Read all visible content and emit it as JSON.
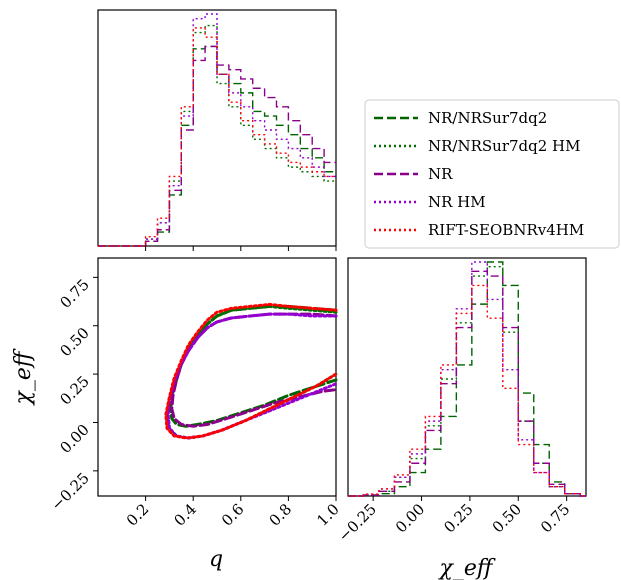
{
  "chart_data": [
    {
      "type": "histogram",
      "panel": "q-marginal",
      "bin_edges": [
        0.0,
        0.05,
        0.1,
        0.15,
        0.2,
        0.25,
        0.3,
        0.35,
        0.4,
        0.45,
        0.5,
        0.55,
        0.6,
        0.65,
        0.7,
        0.75,
        0.8,
        0.85,
        0.9,
        0.95,
        1.0
      ],
      "xlim": [
        0.0,
        1.0
      ],
      "series": [
        {
          "name": "NR/NRSur7dq2",
          "color": "#006400",
          "style": "dashed",
          "values": [
            0,
            0,
            0,
            0,
            0.02,
            0.06,
            0.22,
            0.52,
            0.85,
            0.86,
            0.74,
            0.7,
            0.66,
            0.58,
            0.56,
            0.52,
            0.48,
            0.42,
            0.38,
            0.32
          ]
        },
        {
          "name": "NR/NRSur7dq2 HM",
          "color": "#007000",
          "style": "dotted",
          "values": [
            0,
            0,
            0,
            0,
            0.03,
            0.1,
            0.28,
            0.58,
            0.92,
            0.95,
            0.7,
            0.6,
            0.52,
            0.46,
            0.42,
            0.38,
            0.34,
            0.32,
            0.3,
            0.28
          ]
        },
        {
          "name": "NR",
          "color": "#8B008B",
          "style": "dashed",
          "values": [
            0,
            0,
            0,
            0,
            0.02,
            0.07,
            0.24,
            0.5,
            0.8,
            0.86,
            0.78,
            0.76,
            0.72,
            0.68,
            0.64,
            0.6,
            0.54,
            0.48,
            0.42,
            0.36
          ]
        },
        {
          "name": "NR HM",
          "color": "#9400D3",
          "style": "dotted",
          "values": [
            0,
            0,
            0,
            0,
            0.03,
            0.1,
            0.26,
            0.56,
            0.98,
            1.0,
            0.74,
            0.66,
            0.6,
            0.54,
            0.5,
            0.46,
            0.42,
            0.38,
            0.34,
            0.3
          ]
        },
        {
          "name": "RIFT-SEOBNRv4HM",
          "color": "#ff0000",
          "style": "dotted",
          "values": [
            0,
            0,
            0,
            0,
            0.04,
            0.12,
            0.3,
            0.6,
            0.94,
            0.9,
            0.74,
            0.62,
            0.54,
            0.48,
            0.44,
            0.4,
            0.36,
            0.34,
            0.32,
            0.3
          ]
        }
      ]
    },
    {
      "type": "contour",
      "panel": "q-chi_eff",
      "xlabel": "q",
      "ylabel": "χ_eff",
      "xlim": [
        0.0,
        1.0
      ],
      "ylim": [
        -0.38,
        0.85
      ],
      "xticks": [
        "0.2",
        "0.4",
        "0.6",
        "0.8",
        "1.0"
      ],
      "yticks": [
        "−0.25",
        "0.00",
        "0.25",
        "0.50",
        "0.75"
      ],
      "series": [
        {
          "name": "NR/NRSur7dq2",
          "color": "#006400",
          "style": "dashed",
          "x": [
            1.0,
            0.9,
            0.8,
            0.72,
            0.64,
            0.56,
            0.5,
            0.46,
            0.42,
            0.38,
            0.35,
            0.33,
            0.31,
            0.305,
            0.31,
            0.33,
            0.37,
            0.42,
            0.5,
            0.6,
            0.7,
            0.8,
            0.9,
            1.0
          ],
          "y": [
            0.58,
            0.59,
            0.6,
            0.6,
            0.59,
            0.58,
            0.55,
            0.51,
            0.45,
            0.38,
            0.3,
            0.22,
            0.14,
            0.07,
            0.02,
            -0.01,
            -0.02,
            -0.01,
            0.01,
            0.05,
            0.09,
            0.14,
            0.18,
            0.22
          ]
        },
        {
          "name": "NR/NRSur7dq2 HM",
          "color": "#007000",
          "style": "dotted",
          "x": [
            1.0,
            0.9,
            0.8,
            0.72,
            0.64,
            0.56,
            0.5,
            0.46,
            0.42,
            0.38,
            0.35,
            0.32,
            0.3,
            0.29,
            0.3,
            0.33,
            0.38,
            0.44,
            0.52,
            0.62,
            0.72,
            0.82,
            0.92,
            1.0
          ],
          "y": [
            0.57,
            0.58,
            0.59,
            0.6,
            0.59,
            0.58,
            0.55,
            0.51,
            0.45,
            0.38,
            0.3,
            0.21,
            0.12,
            0.04,
            -0.03,
            -0.07,
            -0.08,
            -0.07,
            -0.04,
            0.01,
            0.07,
            0.13,
            0.19,
            0.25
          ]
        },
        {
          "name": "NR",
          "color": "#8B008B",
          "style": "dashed",
          "x": [
            1.0,
            0.9,
            0.8,
            0.72,
            0.64,
            0.56,
            0.5,
            0.46,
            0.42,
            0.38,
            0.35,
            0.33,
            0.315,
            0.31,
            0.32,
            0.35,
            0.4,
            0.46,
            0.54,
            0.64,
            0.74,
            0.84,
            0.94,
            1.0
          ],
          "y": [
            0.55,
            0.56,
            0.56,
            0.56,
            0.55,
            0.54,
            0.52,
            0.49,
            0.44,
            0.37,
            0.3,
            0.22,
            0.14,
            0.07,
            0.02,
            -0.01,
            -0.02,
            -0.01,
            0.02,
            0.06,
            0.1,
            0.13,
            0.16,
            0.17
          ]
        },
        {
          "name": "NR HM",
          "color": "#9400D3",
          "style": "dotted",
          "x": [
            1.0,
            0.9,
            0.8,
            0.72,
            0.64,
            0.56,
            0.5,
            0.46,
            0.42,
            0.38,
            0.35,
            0.32,
            0.3,
            0.295,
            0.3,
            0.33,
            0.38,
            0.44,
            0.52,
            0.62,
            0.72,
            0.82,
            0.92,
            1.0
          ],
          "y": [
            0.55,
            0.55,
            0.56,
            0.56,
            0.55,
            0.54,
            0.52,
            0.49,
            0.44,
            0.37,
            0.3,
            0.21,
            0.12,
            0.04,
            -0.03,
            -0.07,
            -0.08,
            -0.07,
            -0.04,
            0.01,
            0.06,
            0.11,
            0.16,
            0.2
          ]
        },
        {
          "name": "RIFT-SEOBNRv4HM",
          "color": "#ff0000",
          "style": "dotted",
          "x": [
            1.0,
            0.9,
            0.8,
            0.72,
            0.64,
            0.56,
            0.5,
            0.46,
            0.42,
            0.38,
            0.35,
            0.32,
            0.3,
            0.285,
            0.29,
            0.32,
            0.37,
            0.44,
            0.52,
            0.62,
            0.72,
            0.82,
            0.92,
            1.0
          ],
          "y": [
            0.58,
            0.59,
            0.6,
            0.61,
            0.6,
            0.59,
            0.57,
            0.53,
            0.47,
            0.4,
            0.32,
            0.23,
            0.13,
            0.04,
            -0.03,
            -0.07,
            -0.08,
            -0.07,
            -0.04,
            0.01,
            0.07,
            0.13,
            0.19,
            0.25
          ]
        }
      ]
    },
    {
      "type": "histogram",
      "panel": "chi_eff-marginal",
      "xlabel": "χ_eff",
      "bin_edges": [
        -0.38,
        -0.3,
        -0.22,
        -0.14,
        -0.06,
        0.02,
        0.1,
        0.18,
        0.26,
        0.34,
        0.42,
        0.5,
        0.58,
        0.66,
        0.74,
        0.82,
        0.85
      ],
      "xlim": [
        -0.38,
        0.85
      ],
      "xticks": [
        "−0.25",
        "0.00",
        "0.25",
        "0.50",
        "0.75"
      ],
      "series": [
        {
          "name": "NR/NRSur7dq2",
          "color": "#006400",
          "style": "dashed",
          "values": [
            0,
            0.004,
            0.01,
            0.04,
            0.1,
            0.2,
            0.34,
            0.56,
            0.82,
            1.0,
            0.9,
            0.44,
            0.22,
            0.06,
            0.01,
            0
          ]
        },
        {
          "name": "NR/NRSur7dq2 HM",
          "color": "#007000",
          "style": "dotted",
          "values": [
            0,
            0.006,
            0.02,
            0.08,
            0.16,
            0.3,
            0.5,
            0.74,
            0.94,
            0.98,
            0.7,
            0.32,
            0.14,
            0.04,
            0.01,
            0
          ]
        },
        {
          "name": "NR",
          "color": "#8B008B",
          "style": "dashed",
          "values": [
            0,
            0.004,
            0.02,
            0.06,
            0.14,
            0.28,
            0.48,
            0.72,
            0.96,
            0.94,
            0.72,
            0.32,
            0.14,
            0.05,
            0.01,
            0
          ]
        },
        {
          "name": "NR HM",
          "color": "#9400D3",
          "style": "dotted",
          "values": [
            0,
            0.006,
            0.03,
            0.08,
            0.18,
            0.32,
            0.54,
            0.8,
            1.0,
            0.84,
            0.54,
            0.24,
            0.1,
            0.04,
            0.01,
            0
          ]
        },
        {
          "name": "RIFT-SEOBNRv4HM",
          "color": "#ff0000",
          "style": "dotted",
          "values": [
            0,
            0.008,
            0.03,
            0.09,
            0.2,
            0.34,
            0.56,
            0.78,
            0.9,
            0.76,
            0.46,
            0.22,
            0.1,
            0.04,
            0.01,
            0
          ]
        }
      ]
    }
  ],
  "legend": {
    "placement": "right",
    "entries": [
      {
        "label": "NR/NRSur7dq2",
        "color": "#006400",
        "style": "dashed"
      },
      {
        "label": "NR/NRSur7dq2 HM",
        "color": "#007000",
        "style": "dotted"
      },
      {
        "label": "NR",
        "color": "#8B008B",
        "style": "dashed"
      },
      {
        "label": "NR HM",
        "color": "#9400D3",
        "style": "dotted"
      },
      {
        "label": "RIFT-SEOBNRv4HM",
        "color": "#ff0000",
        "style": "dotted"
      }
    ]
  }
}
